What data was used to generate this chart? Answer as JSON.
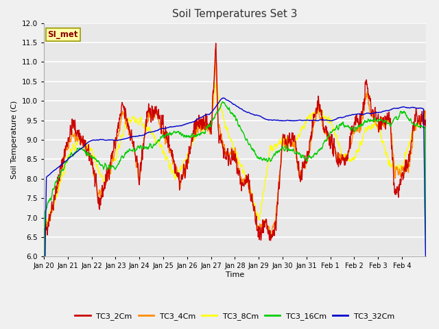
{
  "title": "Soil Temperatures Set 3",
  "xlabel": "Time",
  "ylabel": "Soil Temperature (C)",
  "ylim": [
    6.0,
    12.0
  ],
  "yticks": [
    6.0,
    6.5,
    7.0,
    7.5,
    8.0,
    8.5,
    9.0,
    9.5,
    10.0,
    10.5,
    11.0,
    11.5,
    12.0
  ],
  "xtick_labels": [
    "Jan 20",
    "Jan 21",
    "Jan 22",
    "Jan 23",
    "Jan 24",
    "Jan 25",
    "Jan 26",
    "Jan 27",
    "Jan 28",
    "Jan 29",
    "Jan 30",
    "Jan 31",
    "Feb 1",
    "Feb 2",
    "Feb 3",
    "Feb 4"
  ],
  "series_colors": [
    "#cc0000",
    "#ff8c00",
    "#ffff00",
    "#00cc00",
    "#0000cc"
  ],
  "series_labels": [
    "TC3_2Cm",
    "TC3_4Cm",
    "TC3_8Cm",
    "TC3_16Cm",
    "TC3_32Cm"
  ],
  "fig_bg_color": "#f0f0f0",
  "plot_bg_color": "#e8e8e8",
  "grid_color": "#ffffff",
  "annotation_text": "SI_met",
  "annotation_bg": "#ffffaa",
  "annotation_border": "#999900",
  "annotation_text_color": "#880000"
}
